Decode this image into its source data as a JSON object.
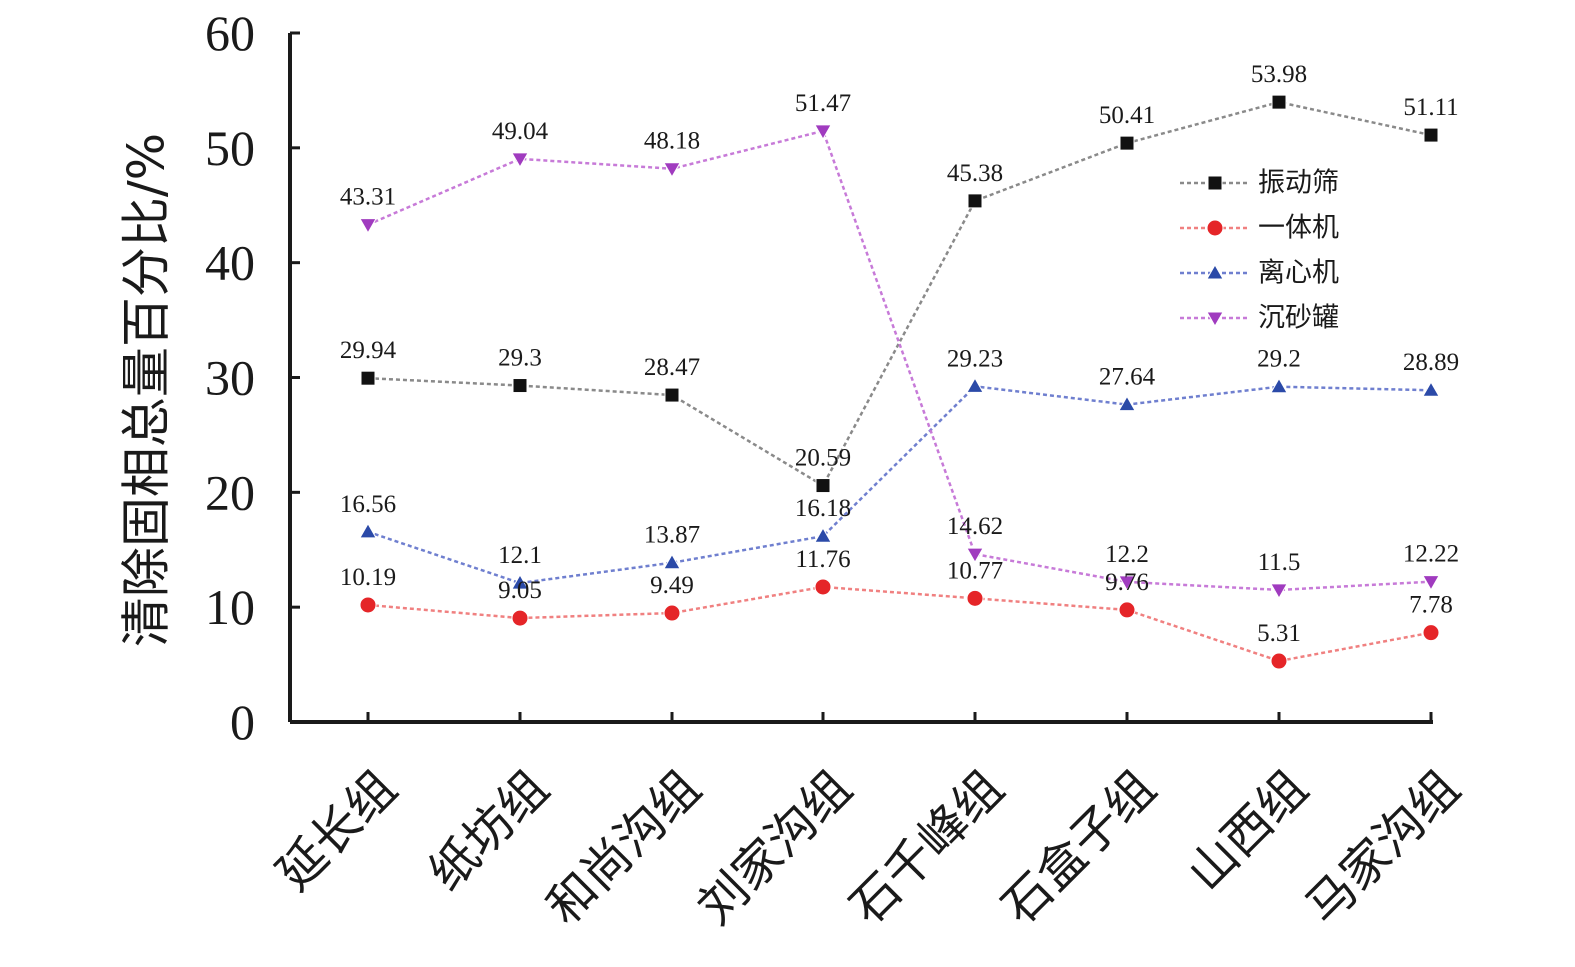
{
  "chart_data": {
    "type": "line",
    "title": "",
    "xlabel": "",
    "ylabel": "清除固相总量百分比/%",
    "ylim": [
      0,
      60
    ],
    "yticks": [
      "0",
      "10",
      "20",
      "30",
      "40",
      "50",
      "60"
    ],
    "grid": false,
    "legend_position": "top-right",
    "categories": [
      "延长组",
      "纸坊组",
      "和尚沟组",
      "刘家沟组",
      "石千峰组",
      "石盒子组",
      "山西组",
      "马家沟组"
    ],
    "series": [
      {
        "name": "振动筛",
        "marker": "square",
        "color": "#111111",
        "line_color": "#8a8a8a",
        "values": [
          29.94,
          29.3,
          28.47,
          20.59,
          45.38,
          50.41,
          53.98,
          51.11
        ],
        "labels": [
          "29.94",
          "29.3",
          "28.47",
          "20.59",
          "45.38",
          "50.41",
          "53.98",
          "51.11"
        ]
      },
      {
        "name": "一体机",
        "marker": "circle",
        "color": "#e52528",
        "line_color": "#f08080",
        "values": [
          10.19,
          9.05,
          9.49,
          11.76,
          10.77,
          9.76,
          5.31,
          7.78
        ],
        "labels": [
          "10.19",
          "9.05",
          "9.49",
          "11.76",
          "10.77",
          "9.76",
          "5.31",
          "7.78"
        ]
      },
      {
        "name": "离心机",
        "marker": "triangle-up",
        "color": "#2b4aa8",
        "line_color": "#6f7fcf",
        "values": [
          16.56,
          12.1,
          13.87,
          16.18,
          29.23,
          27.64,
          29.2,
          28.89
        ],
        "labels": [
          "16.56",
          "12.1",
          "13.87",
          "16.18",
          "29.23",
          "27.64",
          "29.2",
          "28.89"
        ]
      },
      {
        "name": "沉砂罐",
        "marker": "triangle-down",
        "color": "#a03bbf",
        "line_color": "#c77ad8",
        "values": [
          43.31,
          49.04,
          48.18,
          51.47,
          14.62,
          12.2,
          11.5,
          12.22
        ],
        "labels": [
          "43.31",
          "49.04",
          "48.18",
          "51.47",
          "14.62",
          "12.2",
          "11.5",
          "12.22"
        ]
      }
    ]
  }
}
